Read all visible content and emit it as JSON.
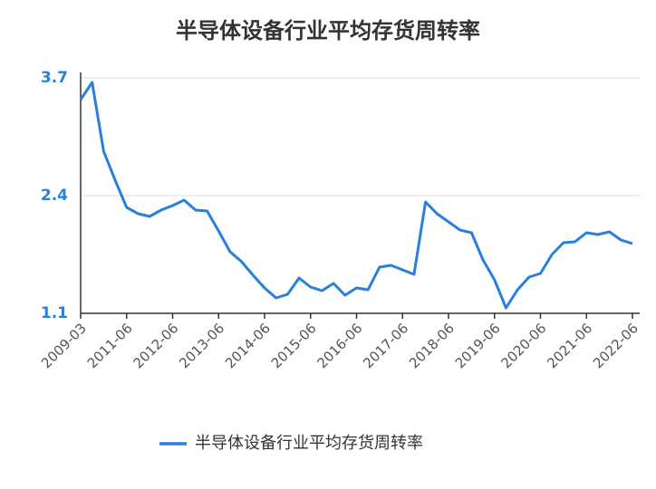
{
  "chart_data": {
    "type": "line",
    "title": "半导体设备行业平均存货周转率",
    "categories": [
      "2009-03",
      null,
      null,
      null,
      "2011-06",
      null,
      null,
      null,
      "2012-06",
      null,
      null,
      null,
      "2013-06",
      null,
      null,
      null,
      "2014-06",
      null,
      null,
      null,
      "2015-06",
      null,
      null,
      null,
      "2016-06",
      null,
      null,
      null,
      "2017-06",
      null,
      null,
      null,
      "2018-06",
      null,
      null,
      null,
      "2019-06",
      null,
      null,
      null,
      "2020-06",
      null,
      null,
      null,
      "2021-06",
      null,
      null,
      null,
      "2022-06"
    ],
    "series": [
      {
        "name": "半导体设备行业平均存货周转率",
        "color": "#2a7fde",
        "values": [
          3.46,
          3.65,
          2.89,
          2.57,
          2.27,
          2.2,
          2.17,
          2.24,
          2.29,
          2.35,
          2.24,
          2.23,
          2.01,
          1.78,
          1.67,
          1.52,
          1.38,
          1.27,
          1.31,
          1.49,
          1.39,
          1.35,
          1.43,
          1.3,
          1.38,
          1.36,
          1.61,
          1.63,
          1.58,
          1.53,
          2.33,
          2.2,
          2.11,
          2.02,
          1.99,
          1.69,
          1.47,
          1.16,
          1.36,
          1.5,
          1.54,
          1.75,
          1.88,
          1.89,
          1.99,
          1.97,
          2.0,
          1.91,
          1.87
        ]
      }
    ],
    "ylim": [
      1.1,
      3.7
    ],
    "yticks": [
      1.1,
      2.4,
      3.7
    ],
    "grid": true
  }
}
